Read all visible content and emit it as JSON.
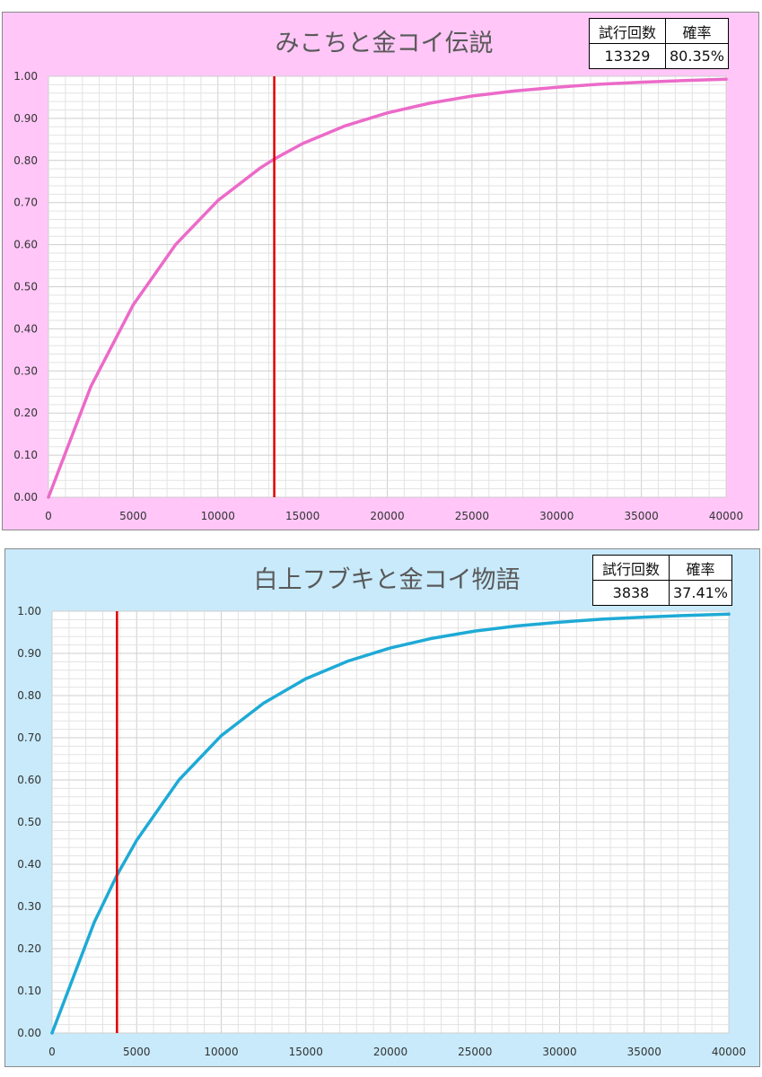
{
  "chart_data": [
    {
      "type": "line",
      "title": "みこちと金コイ伝説",
      "background": "#ffc6f7",
      "line_color": "#ec6ac9",
      "marker_color": "#e00000",
      "xlim": [
        0,
        40000
      ],
      "ylim": [
        0,
        1
      ],
      "x_ticks": [
        "0",
        "5000",
        "10000",
        "15000",
        "20000",
        "25000",
        "30000",
        "35000",
        "40000"
      ],
      "y_ticks": [
        "0.00",
        "0.10",
        "0.20",
        "0.30",
        "0.40",
        "0.50",
        "0.60",
        "0.70",
        "0.80",
        "0.90",
        "1.00"
      ],
      "x": [
        0,
        2500,
        5000,
        7500,
        10000,
        12500,
        13329,
        15000,
        17500,
        20000,
        22500,
        25000,
        27500,
        30000,
        32500,
        35000,
        37500,
        40000
      ],
      "y": [
        0,
        0.263,
        0.457,
        0.6,
        0.705,
        0.782,
        0.8035,
        0.84,
        0.882,
        0.913,
        0.936,
        0.953,
        0.965,
        0.974,
        0.981,
        0.986,
        0.99,
        0.993
      ],
      "marker_x": 13329,
      "stats": {
        "header_trials": "試行回数",
        "header_prob": "確率",
        "trials": "13329",
        "prob": "80.35%"
      }
    },
    {
      "type": "line",
      "title": "白上フブキと金コイ物語",
      "background": "#c8eafb",
      "line_color": "#1eaad6",
      "marker_color": "#e00000",
      "xlim": [
        0,
        40000
      ],
      "ylim": [
        0,
        1
      ],
      "x_ticks": [
        "0",
        "5000",
        "10000",
        "15000",
        "20000",
        "25000",
        "30000",
        "35000",
        "40000"
      ],
      "y_ticks": [
        "0.00",
        "0.10",
        "0.20",
        "0.30",
        "0.40",
        "0.50",
        "0.60",
        "0.70",
        "0.80",
        "0.90",
        "1.00"
      ],
      "x": [
        0,
        2500,
        3838,
        5000,
        7500,
        10000,
        12500,
        15000,
        17500,
        20000,
        22500,
        25000,
        27500,
        30000,
        32500,
        35000,
        37500,
        40000
      ],
      "y": [
        0,
        0.263,
        0.3741,
        0.457,
        0.6,
        0.705,
        0.782,
        0.84,
        0.882,
        0.913,
        0.936,
        0.953,
        0.965,
        0.974,
        0.981,
        0.986,
        0.99,
        0.993
      ],
      "marker_x": 3838,
      "stats": {
        "header_trials": "試行回数",
        "header_prob": "確率",
        "trials": "3838",
        "prob": "37.41%"
      }
    }
  ]
}
